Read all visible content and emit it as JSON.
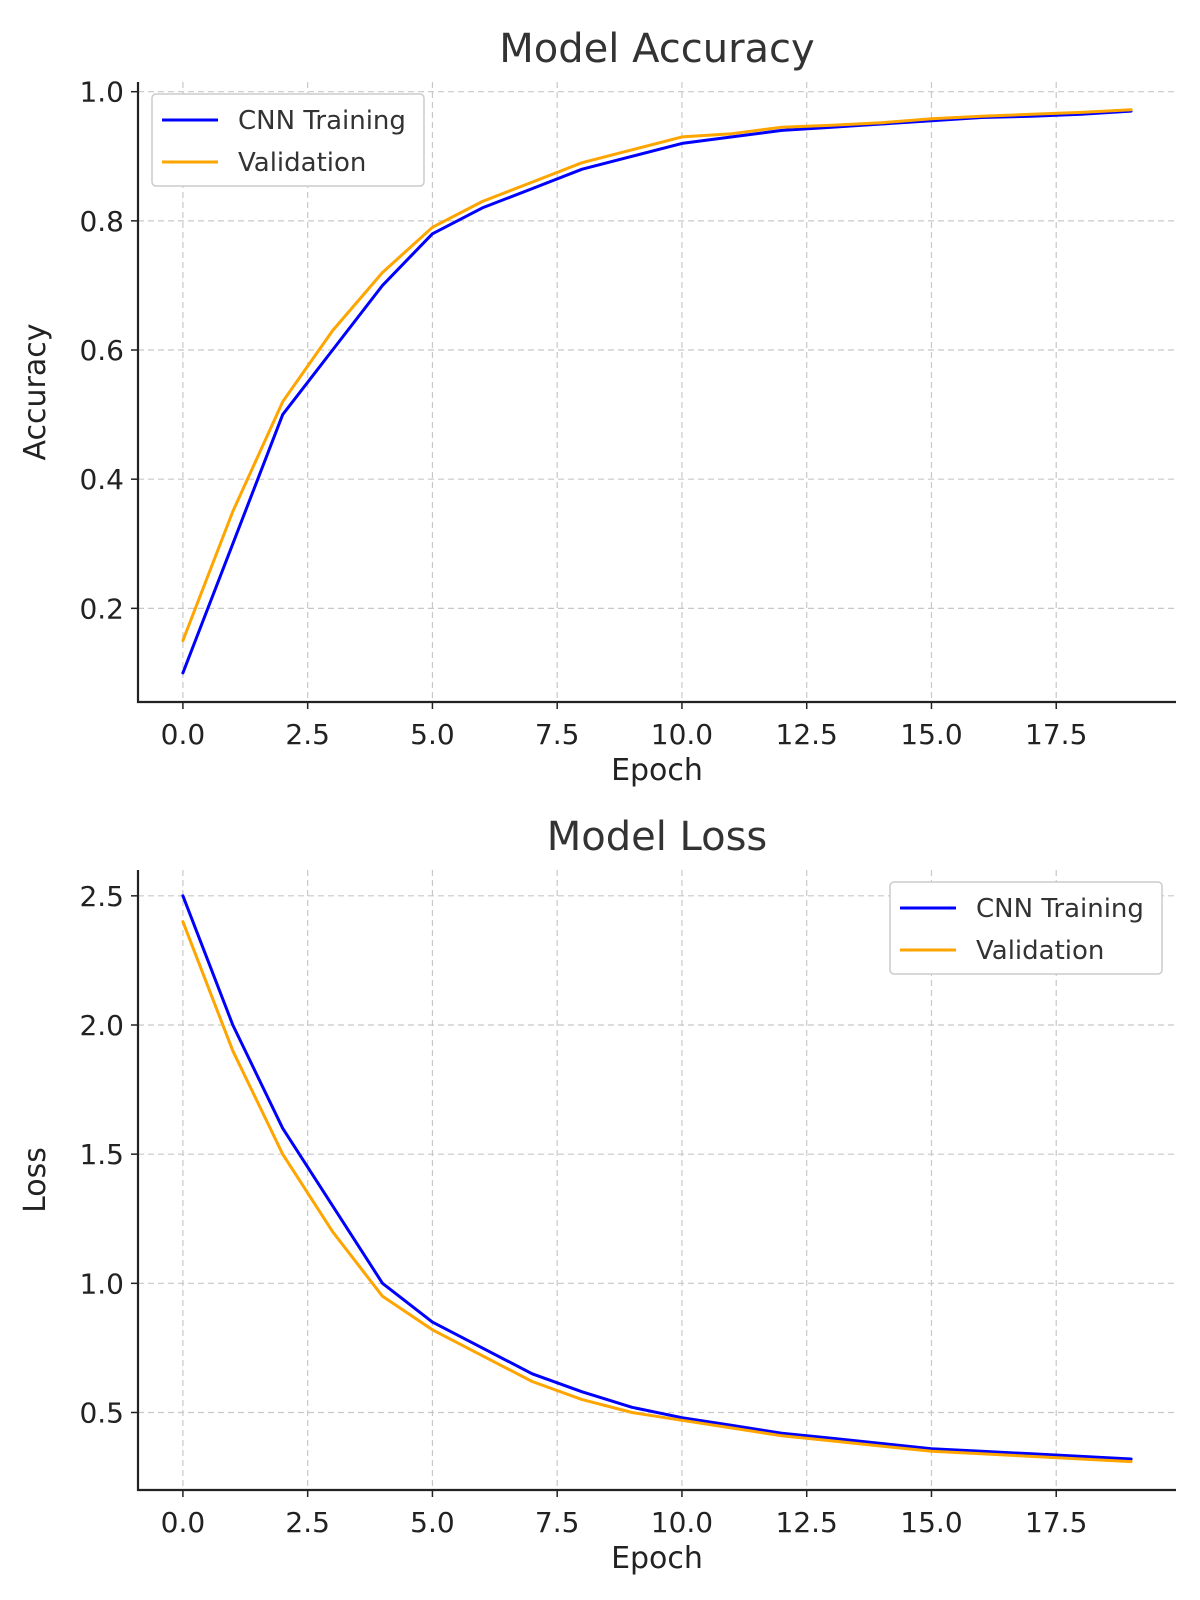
{
  "chart_data": [
    {
      "type": "line",
      "title": "Model Accuracy",
      "xlabel": "Epoch",
      "ylabel": "Accuracy",
      "xlim": [
        -0.9,
        19.9
      ],
      "ylim": [
        0.055,
        1.015
      ],
      "xticks": [
        0,
        2.5,
        5,
        7.5,
        10,
        12.5,
        15,
        17.5
      ],
      "xtick_labels": [
        "0.0",
        "2.5",
        "5.0",
        "7.5",
        "10.0",
        "12.5",
        "15.0",
        "17.5"
      ],
      "yticks": [
        0.2,
        0.4,
        0.6,
        0.8,
        1.0
      ],
      "ytick_labels": [
        "0.2",
        "0.4",
        "0.6",
        "0.8",
        "1.0"
      ],
      "grid": true,
      "legend_position": "top-left",
      "x": [
        0,
        1,
        2,
        3,
        4,
        5,
        6,
        7,
        8,
        9,
        10,
        11,
        12,
        13,
        14,
        15,
        16,
        17,
        18,
        19
      ],
      "series": [
        {
          "name": "CNN Training",
          "color": "#0000ff",
          "values": [
            0.1,
            0.3,
            0.5,
            0.6,
            0.7,
            0.78,
            0.82,
            0.85,
            0.88,
            0.9,
            0.92,
            0.93,
            0.94,
            0.945,
            0.95,
            0.955,
            0.96,
            0.962,
            0.965,
            0.97
          ]
        },
        {
          "name": "Validation",
          "color": "#ffa500",
          "values": [
            0.15,
            0.35,
            0.52,
            0.63,
            0.72,
            0.79,
            0.83,
            0.86,
            0.89,
            0.91,
            0.93,
            0.935,
            0.945,
            0.948,
            0.952,
            0.958,
            0.962,
            0.965,
            0.968,
            0.972
          ]
        }
      ]
    },
    {
      "type": "line",
      "title": "Model Loss",
      "xlabel": "Epoch",
      "ylabel": "Loss",
      "xlim": [
        -0.9,
        19.9
      ],
      "ylim": [
        0.2,
        2.6
      ],
      "xticks": [
        0,
        2.5,
        5,
        7.5,
        10,
        12.5,
        15,
        17.5
      ],
      "xtick_labels": [
        "0.0",
        "2.5",
        "5.0",
        "7.5",
        "10.0",
        "12.5",
        "15.0",
        "17.5"
      ],
      "yticks": [
        0.5,
        1.0,
        1.5,
        2.0,
        2.5
      ],
      "ytick_labels": [
        "0.5",
        "1.0",
        "1.5",
        "2.0",
        "2.5"
      ],
      "grid": true,
      "legend_position": "top-right",
      "x": [
        0,
        1,
        2,
        3,
        4,
        5,
        6,
        7,
        8,
        9,
        10,
        11,
        12,
        13,
        14,
        15,
        16,
        17,
        18,
        19
      ],
      "series": [
        {
          "name": "CNN Training",
          "color": "#0000ff",
          "values": [
            2.5,
            2.0,
            1.6,
            1.3,
            1.0,
            0.85,
            0.75,
            0.65,
            0.58,
            0.52,
            0.48,
            0.45,
            0.42,
            0.4,
            0.38,
            0.36,
            0.35,
            0.34,
            0.33,
            0.32
          ]
        },
        {
          "name": "Validation",
          "color": "#ffa500",
          "values": [
            2.4,
            1.9,
            1.5,
            1.2,
            0.95,
            0.82,
            0.72,
            0.62,
            0.55,
            0.5,
            0.47,
            0.44,
            0.41,
            0.39,
            0.37,
            0.35,
            0.34,
            0.33,
            0.32,
            0.31
          ]
        }
      ]
    }
  ]
}
